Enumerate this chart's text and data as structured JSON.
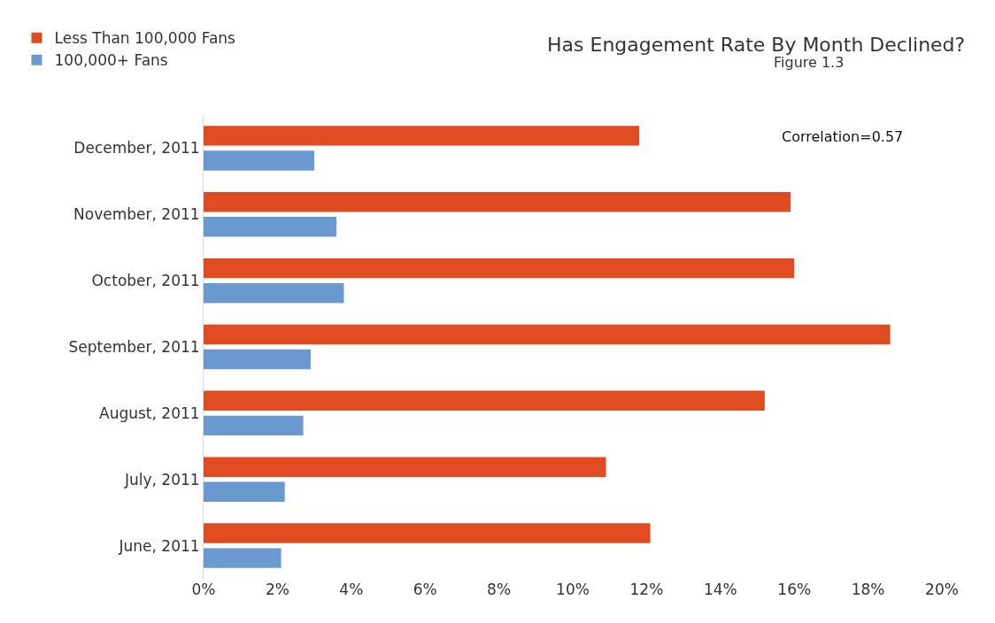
{
  "chart_data": {
    "type": "bar",
    "orientation": "horizontal",
    "title": "Has Engagement Rate By Month Declined?",
    "subtitle": "Figure 1.3",
    "categories": [
      "December, 2011",
      "November, 2011",
      "October, 2011",
      "September, 2011",
      "August, 2011",
      "July, 2011",
      "June, 2011"
    ],
    "series": [
      {
        "name": "Less Than 100,000 Fans",
        "color": "#e04b22",
        "values": [
          11.8,
          15.9,
          16.0,
          18.6,
          15.2,
          10.9,
          12.1
        ]
      },
      {
        "name": "100,000+ Fans",
        "color": "#6a99d0",
        "values": [
          3.0,
          3.6,
          3.8,
          2.9,
          2.7,
          2.2,
          2.1
        ]
      }
    ],
    "xlim": [
      0,
      20
    ],
    "xticks": [
      {
        "value": 0,
        "label": "0%"
      },
      {
        "value": 2,
        "label": "2%"
      },
      {
        "value": 4,
        "label": "4%"
      },
      {
        "value": 6,
        "label": "6%"
      },
      {
        "value": 8,
        "label": "8%"
      },
      {
        "value": 10,
        "label": "10%"
      },
      {
        "value": 12,
        "label": "12%"
      },
      {
        "value": 14,
        "label": "14%"
      },
      {
        "value": 16,
        "label": "16%"
      },
      {
        "value": 18,
        "label": "18%"
      },
      {
        "value": 20,
        "label": "20%"
      }
    ],
    "annotations": [
      "Correlation=0.57"
    ],
    "grid": false,
    "legend": "top left"
  }
}
